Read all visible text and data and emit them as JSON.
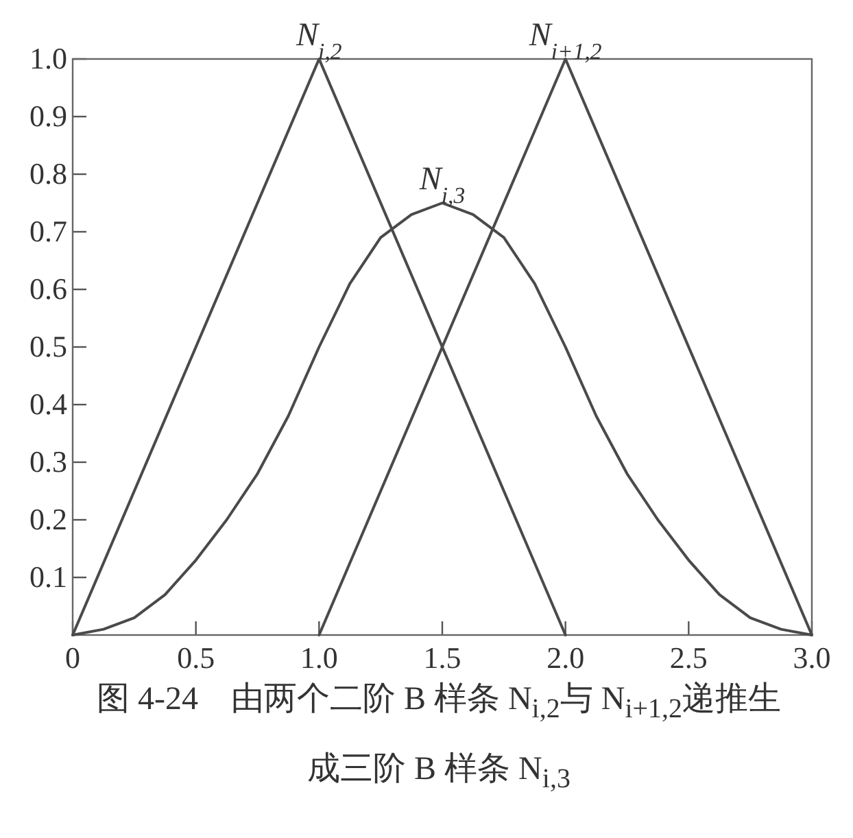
{
  "chart_data": {
    "type": "line",
    "title": "图 4-24　由两个二阶 B 样条 N$_{i,2}$与 N$_{i+1,2}$递推生成三阶 B 样条 N$_{i,3}$",
    "series": [
      {
        "name": "N$_{i,2}$",
        "color": "#4a4a4a",
        "x": [
          0,
          1,
          2
        ],
        "values": [
          0,
          1,
          0
        ]
      },
      {
        "name": "N$_{i+1,2}$",
        "color": "#4a4a4a",
        "x": [
          1,
          2,
          3
        ],
        "values": [
          0,
          1,
          0
        ]
      },
      {
        "name": "N$_{i,3}$",
        "color": "#4a4a4a",
        "x": [
          0,
          0.125,
          0.25,
          0.375,
          0.5,
          0.625,
          0.75,
          0.875,
          1,
          1.125,
          1.25,
          1.375,
          1.5,
          1.625,
          1.75,
          1.875,
          2,
          2.125,
          2.25,
          2.375,
          2.5,
          2.625,
          2.75,
          2.875,
          3
        ],
        "values": [
          0,
          0.01,
          0.03,
          0.07,
          0.13,
          0.2,
          0.28,
          0.38,
          0.5,
          0.61,
          0.69,
          0.73,
          0.75,
          0.73,
          0.69,
          0.61,
          0.5,
          0.38,
          0.28,
          0.2,
          0.13,
          0.07,
          0.03,
          0.01,
          0
        ]
      }
    ],
    "xlim": [
      0,
      3
    ],
    "ylim": [
      0,
      1
    ],
    "xticks": [
      0,
      0.5,
      {
        "value": 1,
        "label": "1.0"
      },
      1.5,
      {
        "value": 2,
        "label": "2.0"
      },
      2.5,
      {
        "value": 3,
        "label": "3.0"
      }
    ],
    "yticks": [
      0.1,
      0.2,
      0.3,
      0.4,
      0.5,
      0.6,
      0.7,
      0.8,
      0.9,
      {
        "value": 1,
        "label": "1.0"
      }
    ],
    "grid": false,
    "legend": false,
    "marker": "none",
    "line_style": "solid"
  }
}
